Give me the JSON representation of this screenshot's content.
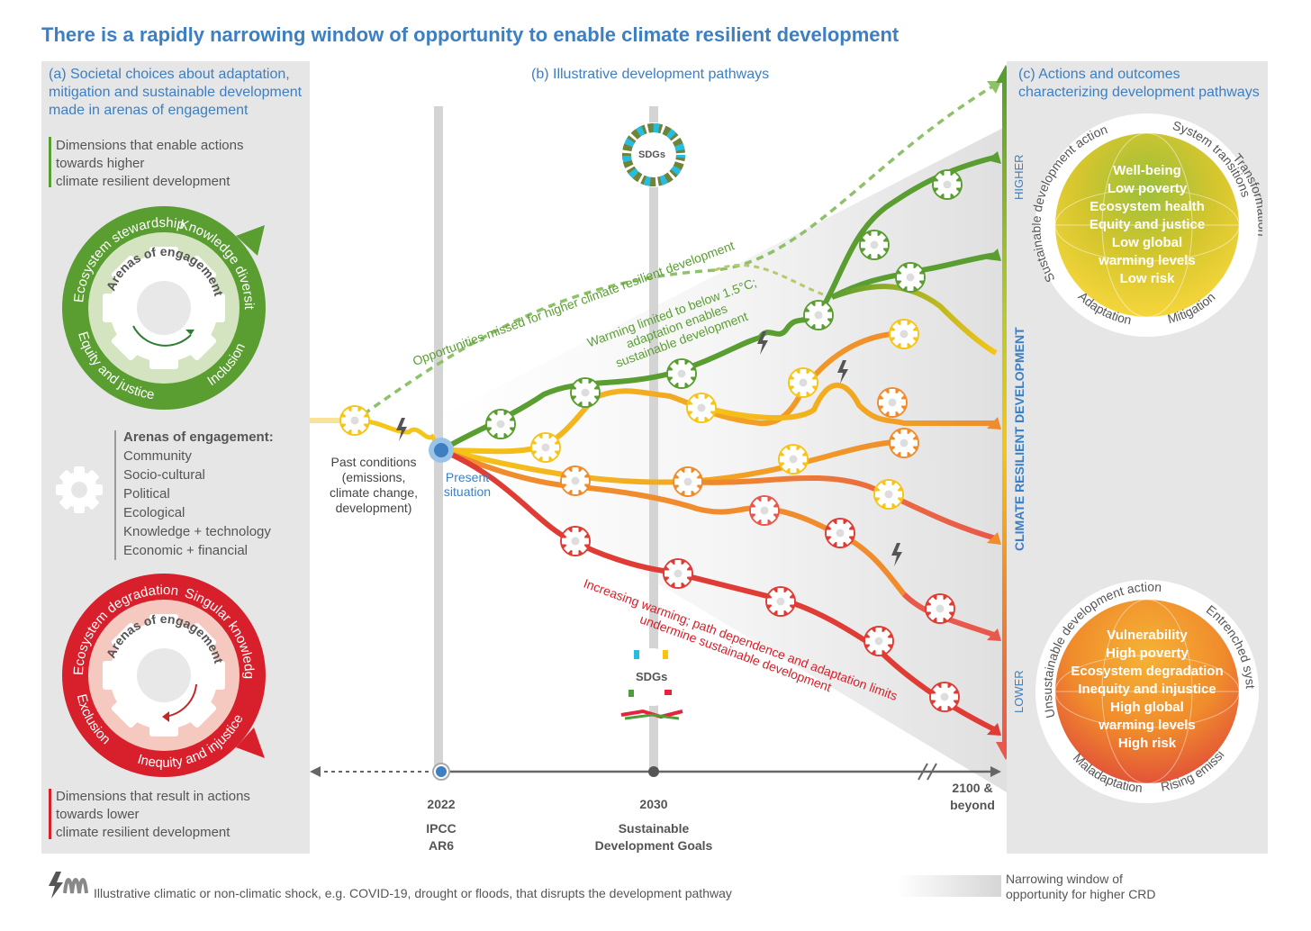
{
  "title": "There is a rapidly narrowing window of opportunity to enable climate resilient development",
  "panel_a": {
    "header": [
      "(a) Societal choices about adaptation,",
      "mitigation and sustainable development",
      "made in arenas of engagement"
    ],
    "enable_dims": [
      "Dimensions that enable actions",
      "towards higher",
      "climate resilient development"
    ],
    "green_ring": [
      "Ecosystem stewardship",
      "Knowledge diversity",
      "Equity and justice",
      "Inclusion"
    ],
    "gear_label": "Arenas of engagement",
    "arenas_title": "Arenas of engagement:",
    "arenas": [
      "Community",
      "Socio-cultural",
      "Political",
      "Ecological",
      "Knowledge + technology",
      "Economic + financial"
    ],
    "red_ring": [
      "Ecosystem degradation",
      "Singular knowledge",
      "Exclusion",
      "Inequity and injustice"
    ],
    "lower_dims": [
      "Dimensions that result in actions",
      "towards lower",
      "climate resilient development"
    ]
  },
  "panel_b": {
    "header": "(b) Illustrative development pathways",
    "past_conditions": [
      "Past conditions",
      "(emissions,",
      "climate change,",
      "development)"
    ],
    "present": [
      "Present",
      "situation"
    ],
    "sdgs_label": "SDGs",
    "missed": "Opportunities missed for higher climate resilient development",
    "warming_limited": [
      "Warming limited to below 1.5°C;",
      "adaptation enables",
      "sustainable development"
    ],
    "increasing": [
      "Increasing warming; path dependence and adaptation limits",
      "undermine sustainable development"
    ],
    "axis": {
      "t1": {
        "year": "2022",
        "sub": [
          "IPCC",
          "AR6"
        ]
      },
      "t2": {
        "year": "2030",
        "sub": [
          "Sustainable",
          "Development Goals"
        ]
      },
      "t3": {
        "year": [
          "2100 &",
          "beyond"
        ]
      }
    },
    "crd_axis": {
      "label": "CLIMATE RESILIENT DEVELOPMENT",
      "higher": "HIGHER",
      "lower": "LOWER"
    }
  },
  "panel_c": {
    "header": [
      "(c) Actions and outcomes",
      "characterizing development pathways"
    ],
    "higher_ring": [
      "Sustainable development action",
      "System transitions",
      "Transformation",
      "Adaptation",
      "Mitigation"
    ],
    "higher_outcomes": [
      "Well-being",
      "Low poverty",
      "Ecosystem health",
      "Equity and justice",
      "Low global",
      "warming levels",
      "Low risk"
    ],
    "lower_ring": [
      "Unsustainable development action",
      "Entrenched systems",
      "Maladaptation",
      "Rising emissions"
    ],
    "lower_outcomes": [
      "Vulnerability",
      "High poverty",
      "Ecosystem degradation",
      "Inequity and injustice",
      "High global",
      "warming levels",
      "High risk"
    ]
  },
  "legend": {
    "shock": "Illustrative climatic or non-climatic shock, e.g. COVID-19, drought or floods, that disrupts the development pathway",
    "window": [
      "Narrowing window of",
      "opportunity for higher CRD"
    ]
  },
  "colors": {
    "green": "#5a9e32",
    "red": "#d7202b",
    "blue": "#3d7fc1",
    "orange": "#f08c2c",
    "yellow": "#f5c518"
  }
}
